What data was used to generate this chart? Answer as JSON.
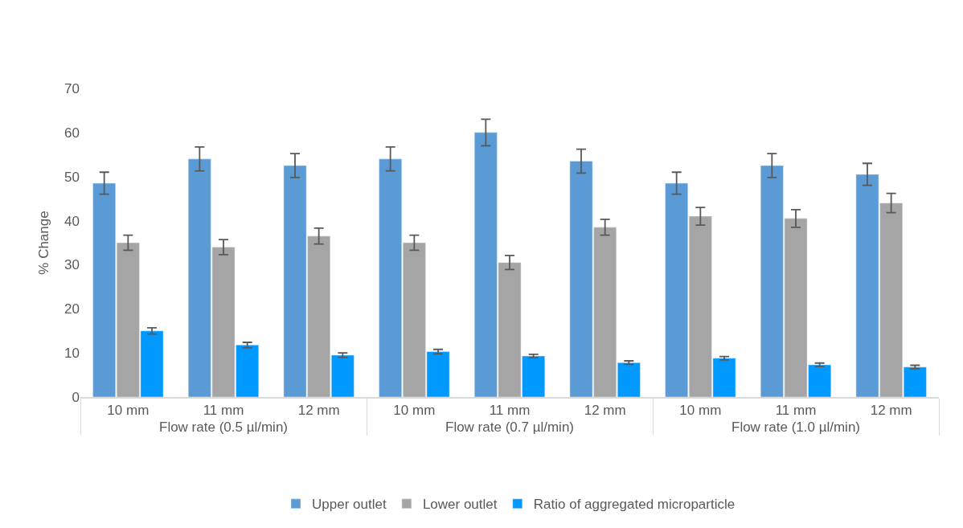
{
  "chart_data": {
    "type": "bar",
    "ylabel": "% Change",
    "categories": [
      "10 mm",
      "11 mm",
      "12 mm",
      "10 mm",
      "11 mm",
      "12 mm",
      "10 mm",
      "11 mm",
      "12 mm"
    ],
    "annotations": [
      "Flow rate (0.5 µl/min)",
      "Flow rate (0.7 µl/min)",
      "Flow rate (1.0 µl/min)"
    ],
    "series": [
      {
        "name": "Upper outlet",
        "color": "#5b9bd5",
        "values": [
          48.5,
          54,
          52.5,
          54,
          60,
          53.5,
          48.5,
          52.5,
          50.5
        ],
        "errors": [
          2.5,
          2.7,
          2.7,
          2.7,
          3,
          2.7,
          2.5,
          2.7,
          2.5
        ]
      },
      {
        "name": "Lower outlet",
        "color": "#a5a5a5",
        "values": [
          35,
          34,
          36.5,
          35,
          30.5,
          38.5,
          41,
          40.5,
          44
        ],
        "errors": [
          1.7,
          1.7,
          1.8,
          1.7,
          1.6,
          1.8,
          2,
          2,
          2.2
        ]
      },
      {
        "name": "Ratio of aggregated microparticle",
        "color": "#0099ff",
        "values": [
          15,
          11.8,
          9.5,
          10.3,
          9.3,
          7.8,
          8.8,
          7.3,
          6.8
        ],
        "errors": [
          0.7,
          0.6,
          0.5,
          0.5,
          0.4,
          0.4,
          0.4,
          0.4,
          0.4
        ]
      }
    ],
    "ylim": [
      0,
      70
    ],
    "yticks": [
      0,
      10,
      20,
      30,
      40,
      50,
      60,
      70
    ],
    "grid": false,
    "legend": "bottom"
  }
}
